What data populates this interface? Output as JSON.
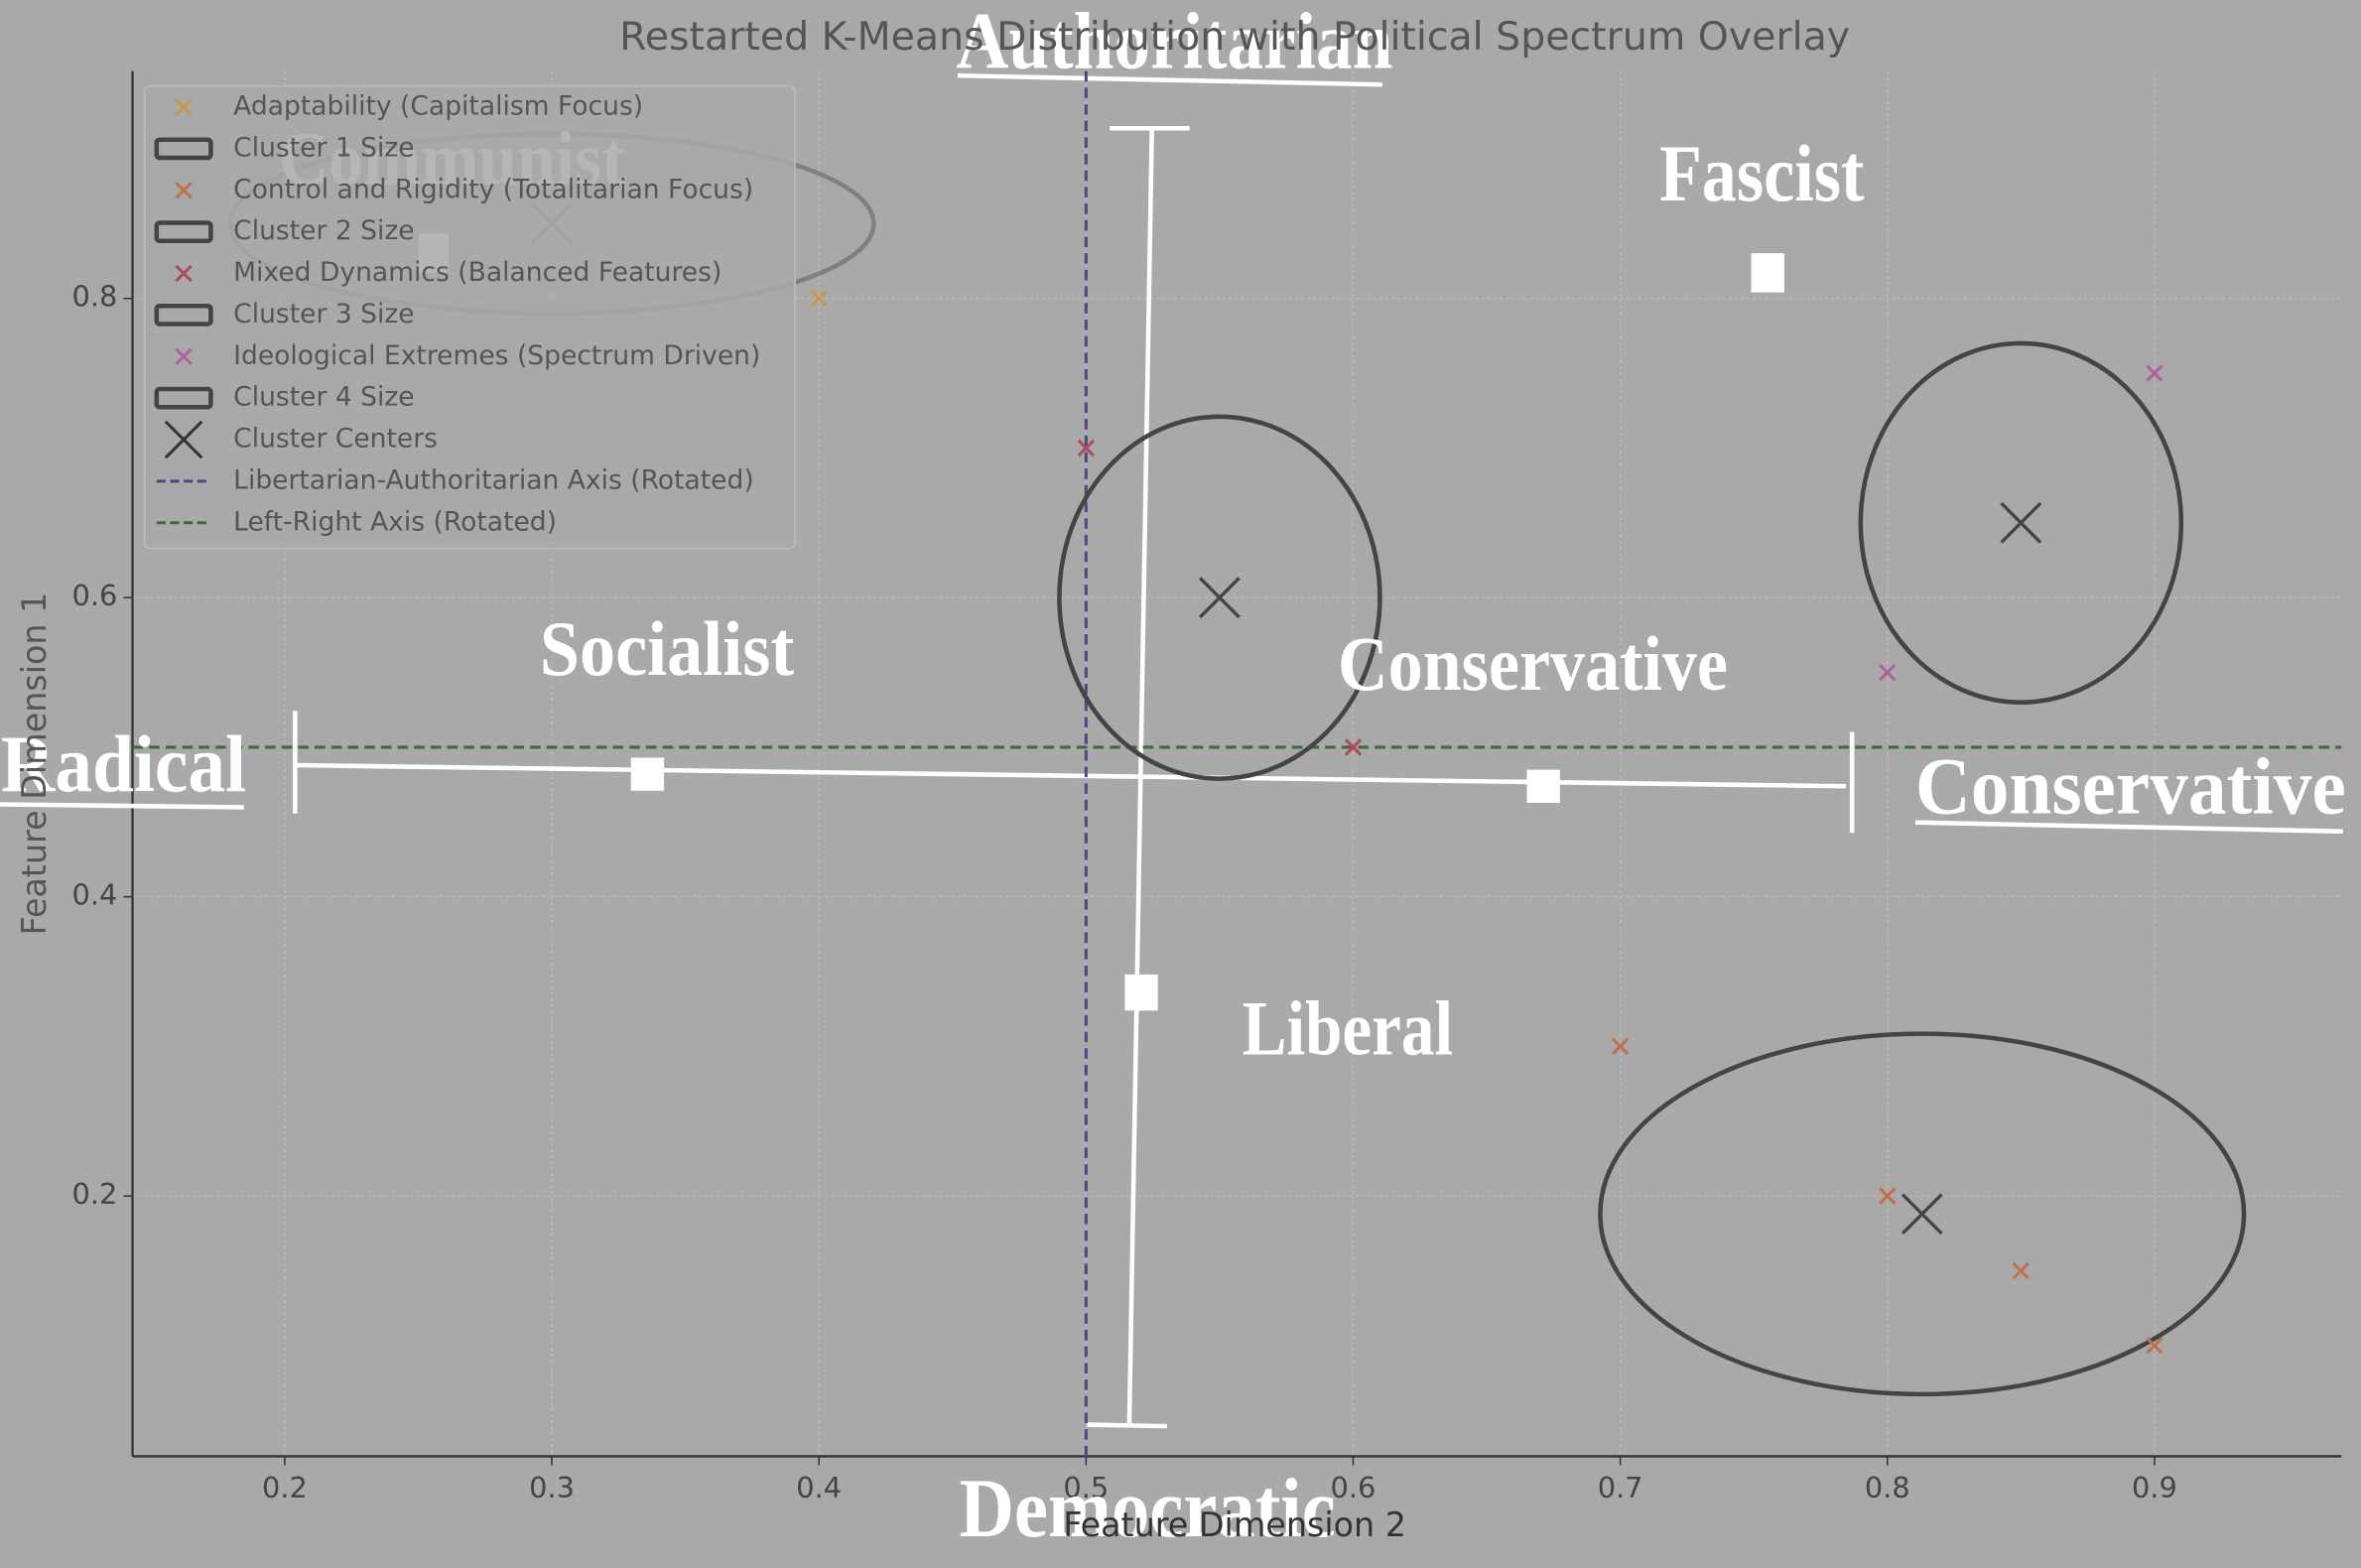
{
  "chart_data": {
    "type": "scatter",
    "title": "Restarted K-Means Distribution with Political Spectrum Overlay",
    "x_label": "Feature Dimension 2",
    "y_label": "Feature Dimension 1",
    "xlim": [
      0.143,
      0.97
    ],
    "ylim": [
      0.026,
      0.952
    ],
    "xticks": [
      0.2,
      0.3,
      0.4,
      0.5,
      0.6,
      0.7,
      0.8,
      0.9
    ],
    "yticks": [
      0.2,
      0.4,
      0.6,
      0.8
    ],
    "grid": true,
    "legend": "upper left",
    "series": [
      {
        "name": "Adaptability (Capitalism Focus)",
        "color": "#c49a4a",
        "x": [
          0.4
        ],
        "values": [
          0.8
        ]
      },
      {
        "name": "Control and Rigidity (Totalitarian Focus)",
        "color": "#c0704a",
        "x": [
          0.7,
          0.8,
          0.85,
          0.9
        ],
        "values": [
          0.3,
          0.2,
          0.15,
          0.1
        ]
      },
      {
        "name": "Mixed Dynamics (Balanced Features)",
        "color": "#b04a5e",
        "x": [
          0.5,
          0.6
        ],
        "values": [
          0.7,
          0.5
        ]
      },
      {
        "name": "Ideological Extremes (Spectrum Driven)",
        "color": "#b0609a",
        "x": [
          0.9,
          0.8
        ],
        "values": [
          0.75,
          0.55
        ]
      }
    ],
    "ellipses": [
      {
        "name": "Cluster 1 Size",
        "color": "#808080",
        "width": 0.241,
        "height": 0.12
      },
      {
        "name": "Cluster 2 Size",
        "color": "#444444",
        "width": 0.12,
        "height": 0.242
      },
      {
        "name": "Cluster 3 Size",
        "color": "#444444",
        "width": 0.12,
        "height": 0.24
      },
      {
        "name": "Cluster 4 Size",
        "color": "#444444",
        "width": 0.241,
        "height": 0.241
      }
    ],
    "cluster_centers": {
      "name": "Cluster Centers",
      "color": "#333333",
      "x": [
        0.3,
        0.55,
        0.85,
        0.813
      ],
      "values": [
        0.85,
        0.6,
        0.65,
        0.188
      ]
    },
    "lines": [
      {
        "name": "Libertarian-Authoritarian Axis (Rotated)",
        "color": "#4a4a82",
        "axis": "x",
        "value": 0.5
      },
      {
        "name": "Left-Right Axis (Rotated)",
        "color": "#3f6a3f",
        "axis": "y",
        "value": 0.5
      }
    ],
    "overlay_labels": [
      "Authoritarian",
      "Communist",
      "Fascist",
      "Socialist",
      "Conservative",
      "Radical",
      "Conservative",
      "Liberal",
      "Democratic"
    ]
  }
}
